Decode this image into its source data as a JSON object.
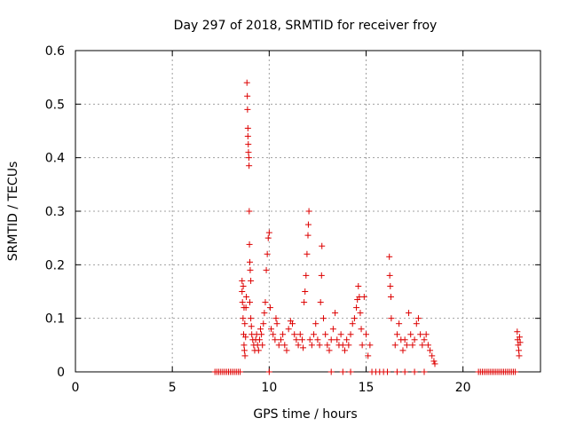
{
  "chart_data": {
    "type": "scatter",
    "title": "Day 297 of 2018, SRMTID for receiver froy",
    "xlabel": "GPS time / hours",
    "ylabel": "SRMTID / TECUs",
    "xlim": [
      0,
      24
    ],
    "ylim": [
      0,
      0.6
    ],
    "xticks": [
      0,
      5,
      10,
      15,
      20
    ],
    "yticks": [
      0,
      0.1,
      0.2,
      0.3,
      0.4,
      0.5,
      0.6
    ],
    "xtick_labels": [
      "0",
      "5",
      "10",
      "15",
      "20"
    ],
    "ytick_labels": [
      "0",
      "0.1",
      "0.2",
      "0.3",
      "0.4",
      "0.5",
      "0.6"
    ],
    "grid": true,
    "marker": "+",
    "color": "#dd0000",
    "series": [
      {
        "name": "SRMTID",
        "points": [
          [
            7.2,
            0
          ],
          [
            7.3,
            0
          ],
          [
            7.4,
            0
          ],
          [
            7.5,
            0
          ],
          [
            7.6,
            0
          ],
          [
            7.7,
            0
          ],
          [
            7.8,
            0
          ],
          [
            7.9,
            0
          ],
          [
            8.0,
            0
          ],
          [
            8.1,
            0
          ],
          [
            8.2,
            0
          ],
          [
            8.3,
            0
          ],
          [
            8.4,
            0
          ],
          [
            8.5,
            0
          ],
          [
            8.6,
            0.17
          ],
          [
            8.6,
            0.15
          ],
          [
            8.62,
            0.13
          ],
          [
            8.65,
            0.1
          ],
          [
            8.68,
            0.07
          ],
          [
            8.7,
            0.05
          ],
          [
            8.72,
            0.04
          ],
          [
            8.75,
            0.03
          ],
          [
            8.66,
            0.16
          ],
          [
            8.7,
            0.12
          ],
          [
            8.74,
            0.09
          ],
          [
            8.78,
            0.065
          ],
          [
            8.8,
            0.12
          ],
          [
            8.82,
            0.14
          ],
          [
            8.85,
            0.54
          ],
          [
            8.87,
            0.515
          ],
          [
            8.88,
            0.49
          ],
          [
            8.9,
            0.455
          ],
          [
            8.9,
            0.44
          ],
          [
            8.92,
            0.425
          ],
          [
            8.93,
            0.41
          ],
          [
            8.95,
            0.4
          ],
          [
            8.96,
            0.385
          ],
          [
            8.97,
            0.3
          ],
          [
            8.98,
            0.238
          ],
          [
            9.0,
            0.205
          ],
          [
            9.02,
            0.19
          ],
          [
            9.05,
            0.17
          ],
          [
            9.0,
            0.13
          ],
          [
            9.05,
            0.1
          ],
          [
            9.08,
            0.085
          ],
          [
            9.1,
            0.07
          ],
          [
            9.15,
            0.06
          ],
          [
            9.2,
            0.05
          ],
          [
            9.25,
            0.04
          ],
          [
            9.3,
            0.06
          ],
          [
            9.35,
            0.07
          ],
          [
            9.4,
            0.05
          ],
          [
            9.45,
            0.04
          ],
          [
            9.5,
            0.06
          ],
          [
            9.55,
            0.08
          ],
          [
            9.6,
            0.07
          ],
          [
            9.65,
            0.05
          ],
          [
            9.7,
            0.09
          ],
          [
            9.75,
            0.11
          ],
          [
            9.8,
            0.13
          ],
          [
            9.85,
            0.19
          ],
          [
            9.9,
            0.22
          ],
          [
            9.95,
            0.25
          ],
          [
            10.0,
            0.26
          ],
          [
            10.0,
            0.0
          ],
          [
            10.05,
            0.12
          ],
          [
            10.1,
            0.08
          ],
          [
            10.2,
            0.07
          ],
          [
            10.3,
            0.06
          ],
          [
            10.35,
            0.1
          ],
          [
            10.4,
            0.09
          ],
          [
            10.5,
            0.05
          ],
          [
            10.6,
            0.06
          ],
          [
            10.7,
            0.07
          ],
          [
            10.8,
            0.05
          ],
          [
            10.9,
            0.04
          ],
          [
            11.0,
            0.08
          ],
          [
            11.1,
            0.095
          ],
          [
            11.2,
            0.09
          ],
          [
            11.3,
            0.07
          ],
          [
            11.4,
            0.06
          ],
          [
            11.5,
            0.05
          ],
          [
            11.6,
            0.07
          ],
          [
            11.7,
            0.06
          ],
          [
            11.75,
            0.045
          ],
          [
            11.8,
            0.13
          ],
          [
            11.85,
            0.15
          ],
          [
            11.9,
            0.18
          ],
          [
            11.95,
            0.22
          ],
          [
            12.0,
            0.255
          ],
          [
            12.02,
            0.275
          ],
          [
            12.05,
            0.3
          ],
          [
            12.1,
            0.06
          ],
          [
            12.2,
            0.05
          ],
          [
            12.3,
            0.07
          ],
          [
            12.4,
            0.09
          ],
          [
            12.5,
            0.06
          ],
          [
            12.6,
            0.05
          ],
          [
            12.65,
            0.13
          ],
          [
            12.7,
            0.18
          ],
          [
            12.72,
            0.235
          ],
          [
            12.8,
            0.1
          ],
          [
            12.9,
            0.07
          ],
          [
            13.0,
            0.05
          ],
          [
            13.1,
            0.04
          ],
          [
            13.2,
            0.06
          ],
          [
            13.3,
            0.08
          ],
          [
            13.4,
            0.11
          ],
          [
            13.5,
            0.06
          ],
          [
            13.6,
            0.05
          ],
          [
            13.7,
            0.07
          ],
          [
            13.8,
            0.05
          ],
          [
            13.9,
            0.04
          ],
          [
            14.0,
            0.06
          ],
          [
            14.1,
            0.05
          ],
          [
            14.2,
            0.07
          ],
          [
            14.3,
            0.09
          ],
          [
            14.4,
            0.1
          ],
          [
            14.5,
            0.12
          ],
          [
            14.55,
            0.135
          ],
          [
            14.6,
            0.16
          ],
          [
            14.65,
            0.14
          ],
          [
            14.7,
            0.11
          ],
          [
            14.75,
            0.08
          ],
          [
            14.8,
            0.05
          ],
          [
            14.9,
            0.14
          ],
          [
            15.0,
            0.07
          ],
          [
            15.1,
            0.03
          ],
          [
            15.2,
            0.05
          ],
          [
            15.3,
            0.0
          ],
          [
            15.5,
            0.0
          ],
          [
            15.7,
            0.0
          ],
          [
            15.9,
            0.0
          ],
          [
            16.1,
            0.0
          ],
          [
            16.2,
            0.215
          ],
          [
            16.22,
            0.18
          ],
          [
            16.25,
            0.16
          ],
          [
            16.28,
            0.14
          ],
          [
            16.3,
            0.1
          ],
          [
            16.5,
            0.05
          ],
          [
            16.6,
            0.07
          ],
          [
            16.7,
            0.09
          ],
          [
            16.8,
            0.06
          ],
          [
            16.9,
            0.04
          ],
          [
            17.0,
            0.06
          ],
          [
            17.1,
            0.05
          ],
          [
            17.2,
            0.11
          ],
          [
            17.3,
            0.07
          ],
          [
            17.4,
            0.05
          ],
          [
            17.5,
            0.06
          ],
          [
            17.6,
            0.09
          ],
          [
            17.7,
            0.1
          ],
          [
            17.8,
            0.07
          ],
          [
            17.9,
            0.05
          ],
          [
            18.0,
            0.06
          ],
          [
            18.1,
            0.07
          ],
          [
            18.2,
            0.05
          ],
          [
            18.3,
            0.04
          ],
          [
            18.4,
            0.03
          ],
          [
            18.5,
            0.02
          ],
          [
            18.55,
            0.015
          ],
          [
            18.0,
            0.0
          ],
          [
            17.5,
            0.0
          ],
          [
            17.0,
            0.0
          ],
          [
            16.6,
            0.0
          ],
          [
            14.2,
            0.0
          ],
          [
            13.8,
            0.0
          ],
          [
            13.2,
            0.0
          ],
          [
            20.8,
            0
          ],
          [
            20.9,
            0
          ],
          [
            21.0,
            0
          ],
          [
            21.1,
            0
          ],
          [
            21.2,
            0
          ],
          [
            21.3,
            0
          ],
          [
            21.4,
            0
          ],
          [
            21.5,
            0
          ],
          [
            21.6,
            0
          ],
          [
            21.7,
            0
          ],
          [
            21.8,
            0
          ],
          [
            21.9,
            0
          ],
          [
            22.0,
            0
          ],
          [
            22.1,
            0
          ],
          [
            22.2,
            0
          ],
          [
            22.3,
            0
          ],
          [
            22.4,
            0
          ],
          [
            22.5,
            0
          ],
          [
            22.6,
            0
          ],
          [
            22.7,
            0
          ],
          [
            22.8,
            0.075
          ],
          [
            22.82,
            0.06
          ],
          [
            22.85,
            0.05
          ],
          [
            22.88,
            0.04
          ],
          [
            22.9,
            0.03
          ],
          [
            22.92,
            0.065
          ],
          [
            22.95,
            0.055
          ]
        ]
      }
    ]
  }
}
